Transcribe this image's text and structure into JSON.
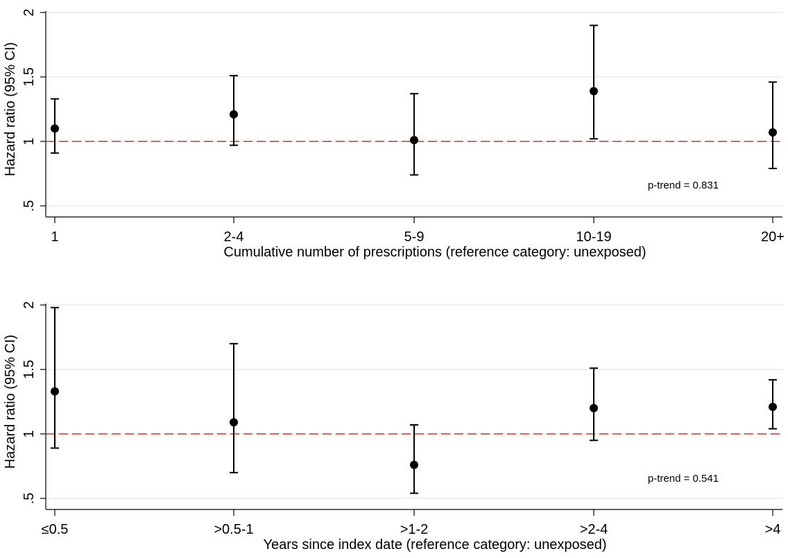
{
  "chart_data": [
    {
      "type": "scatter",
      "subtype": "point-estimate with 95% CI error bars",
      "ylabel": "Hazard ratio (95% CI)",
      "xlabel": "Cumulative number of prescriptions (reference category: unexposed)",
      "yticks": [
        ".5",
        "1",
        "1.5",
        "2"
      ],
      "ylim": [
        0.5,
        2.0
      ],
      "reference_line": 1,
      "reference_line_color": "#c0392b",
      "grid": true,
      "annotation": "p-trend = 0.831",
      "categories": [
        "1",
        "2-4",
        "5-9",
        "10-19",
        "20+"
      ],
      "points": [
        {
          "label": "1",
          "hr": 1.1,
          "lower": 0.91,
          "upper": 1.33
        },
        {
          "label": "2-4",
          "hr": 1.21,
          "lower": 0.97,
          "upper": 1.51
        },
        {
          "label": "5-9",
          "hr": 1.01,
          "lower": 0.74,
          "upper": 1.37
        },
        {
          "label": "10-19",
          "hr": 1.39,
          "lower": 1.02,
          "upper": 1.9
        },
        {
          "label": "20+",
          "hr": 1.07,
          "lower": 0.79,
          "upper": 1.46
        }
      ]
    },
    {
      "type": "scatter",
      "subtype": "point-estimate with 95% CI error bars",
      "ylabel": "Hazard ratio (95% CI)",
      "xlabel": "Years since index date (reference category: unexposed)",
      "yticks": [
        ".5",
        "1",
        "1.5",
        "2"
      ],
      "ylim": [
        0.5,
        2.0
      ],
      "reference_line": 1,
      "reference_line_color": "#c0392b",
      "grid": true,
      "annotation": "p-trend = 0.541",
      "categories": [
        "≤0.5",
        ">0.5-1",
        ">1-2",
        ">2-4",
        ">4"
      ],
      "points": [
        {
          "label": "≤0.5",
          "hr": 1.33,
          "lower": 0.89,
          "upper": 1.98
        },
        {
          "label": ">0.5-1",
          "hr": 1.09,
          "lower": 0.7,
          "upper": 1.7
        },
        {
          "label": ">1-2",
          "hr": 0.76,
          "lower": 0.54,
          "upper": 1.07
        },
        {
          "label": ">2-4",
          "hr": 1.2,
          "lower": 0.95,
          "upper": 1.51
        },
        {
          "label": ">4",
          "hr": 1.21,
          "lower": 1.04,
          "upper": 1.42
        }
      ]
    }
  ]
}
